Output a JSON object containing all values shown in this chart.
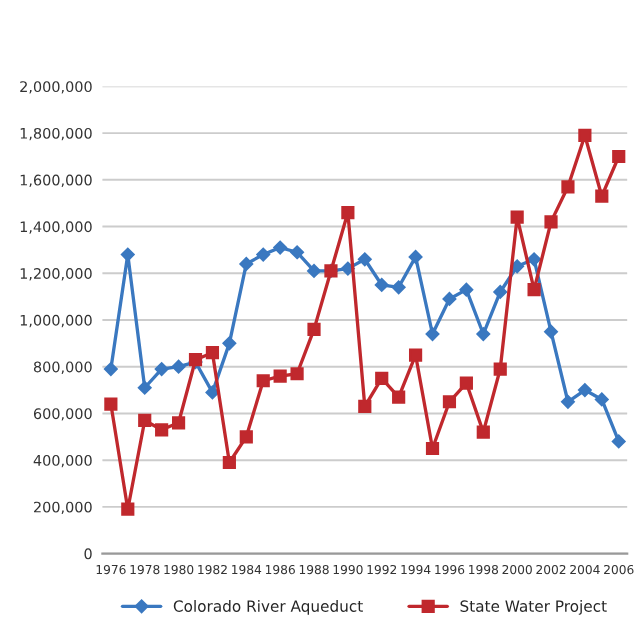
{
  "chart_data": {
    "type": "line",
    "categories": [
      "1976",
      null,
      "1978",
      null,
      "1980",
      null,
      "1982",
      null,
      "1984",
      null,
      "1986",
      null,
      "1988",
      null,
      "1990",
      null,
      "1992",
      null,
      "1994",
      null,
      "1996",
      null,
      "1998",
      null,
      "2000",
      null,
      "2002",
      null,
      "2004",
      null,
      "2006"
    ],
    "series": [
      {
        "name": "Colorado River Aqueduct",
        "color": "#3a78c0",
        "marker": "diamond",
        "values": [
          790000,
          1280000,
          710000,
          790000,
          800000,
          820000,
          690000,
          900000,
          1240000,
          1280000,
          1310000,
          1290000,
          1210000,
          1210000,
          1220000,
          1260000,
          1150000,
          1140000,
          1270000,
          940000,
          1090000,
          1130000,
          940000,
          1120000,
          1230000,
          1260000,
          950000,
          650000,
          700000,
          660000,
          480000
        ]
      },
      {
        "name": "State Water Project",
        "color": "#c0282d",
        "marker": "square",
        "values": [
          640000,
          190000,
          570000,
          530000,
          560000,
          830000,
          860000,
          390000,
          500000,
          740000,
          760000,
          770000,
          960000,
          1210000,
          1460000,
          630000,
          750000,
          670000,
          850000,
          450000,
          650000,
          730000,
          520000,
          790000,
          1440000,
          1130000,
          1420000,
          1570000,
          1790000,
          1530000,
          1700000
        ]
      }
    ],
    "ylim": [
      0,
      2000000
    ],
    "yticks": [
      {
        "value": 0,
        "label": "0"
      },
      {
        "value": 200000,
        "label": "200,000"
      },
      {
        "value": 400000,
        "label": "400,000"
      },
      {
        "value": 600000,
        "label": "600,000"
      },
      {
        "value": 800000,
        "label": "800,000"
      },
      {
        "value": 1000000,
        "label": "1,000,000"
      },
      {
        "value": 1200000,
        "label": "1,200,000"
      },
      {
        "value": 1400000,
        "label": "1,400,000"
      },
      {
        "value": 1600000,
        "label": "1,600,000"
      },
      {
        "value": 1800000,
        "label": "1,800,000"
      },
      {
        "value": 2000000,
        "label": "2,000,000"
      }
    ],
    "grid": "y",
    "legend": "bottom",
    "line_style": "solid"
  }
}
